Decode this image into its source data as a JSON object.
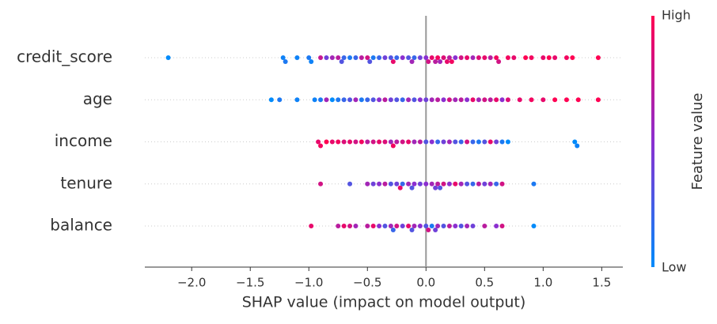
{
  "chart_data": {
    "type": "beeswarm",
    "xlabel": "SHAP value (impact on model output)",
    "categories": [
      "credit_score",
      "age",
      "income",
      "tenure",
      "balance"
    ],
    "values": [
      [
        -2.2,
        -1.22,
        -1.2,
        -1.1,
        -1.0,
        -0.98,
        -0.9,
        -0.85,
        -0.8,
        -0.75,
        -0.72,
        -0.7,
        -0.65,
        -0.6,
        -0.55,
        -0.5,
        -0.48,
        -0.45,
        -0.4,
        -0.35,
        -0.3,
        -0.28,
        -0.25,
        -0.2,
        -0.15,
        -0.12,
        -0.1,
        -0.05,
        0.0,
        0.02,
        0.05,
        0.08,
        0.1,
        0.12,
        0.15,
        0.18,
        0.2,
        0.22,
        0.25,
        0.3,
        0.35,
        0.4,
        0.45,
        0.5,
        0.55,
        0.6,
        0.62,
        0.7,
        0.75,
        0.85,
        0.9,
        1.0,
        1.05,
        1.1,
        1.2,
        1.25,
        1.47
      ],
      [
        -1.32,
        -1.25,
        -1.1,
        -0.95,
        -0.9,
        -0.85,
        -0.8,
        -0.75,
        -0.7,
        -0.65,
        -0.6,
        -0.55,
        -0.5,
        -0.45,
        -0.4,
        -0.35,
        -0.3,
        -0.25,
        -0.2,
        -0.15,
        -0.1,
        -0.05,
        0.0,
        0.05,
        0.1,
        0.15,
        0.2,
        0.25,
        0.3,
        0.35,
        0.4,
        0.45,
        0.5,
        0.55,
        0.6,
        0.65,
        0.7,
        0.8,
        0.9,
        1.0,
        1.1,
        1.2,
        1.3,
        1.47
      ],
      [
        -0.92,
        -0.9,
        -0.85,
        -0.8,
        -0.75,
        -0.7,
        -0.65,
        -0.6,
        -0.55,
        -0.5,
        -0.45,
        -0.4,
        -0.35,
        -0.3,
        -0.28,
        -0.25,
        -0.2,
        -0.15,
        -0.1,
        -0.05,
        0.0,
        0.05,
        0.1,
        0.15,
        0.2,
        0.25,
        0.3,
        0.35,
        0.4,
        0.45,
        0.5,
        0.55,
        0.6,
        0.65,
        0.7,
        1.27,
        1.29
      ],
      [
        -0.9,
        -0.65,
        -0.5,
        -0.45,
        -0.4,
        -0.35,
        -0.3,
        -0.25,
        -0.22,
        -0.2,
        -0.15,
        -0.12,
        -0.1,
        -0.05,
        0.0,
        0.05,
        0.08,
        0.1,
        0.12,
        0.15,
        0.2,
        0.25,
        0.3,
        0.35,
        0.4,
        0.45,
        0.5,
        0.55,
        0.6,
        0.65,
        0.92
      ],
      [
        -0.98,
        -0.75,
        -0.7,
        -0.65,
        -0.6,
        -0.5,
        -0.45,
        -0.4,
        -0.35,
        -0.3,
        -0.28,
        -0.25,
        -0.2,
        -0.15,
        -0.12,
        -0.1,
        -0.05,
        0.0,
        0.02,
        0.05,
        0.08,
        0.1,
        0.15,
        0.2,
        0.25,
        0.3,
        0.35,
        0.4,
        0.5,
        0.6,
        0.65,
        0.92
      ]
    ],
    "feature_values": [
      [
        0.0,
        0.05,
        0.1,
        0.05,
        0.1,
        0.05,
        0.75,
        0.4,
        0.6,
        0.7,
        0.3,
        0.2,
        0.1,
        0.2,
        0.7,
        0.8,
        0.3,
        0.1,
        0.2,
        0.4,
        0.3,
        0.9,
        0.2,
        0.5,
        0.3,
        0.6,
        0.2,
        0.4,
        0.5,
        0.8,
        0.9,
        0.7,
        0.95,
        0.6,
        0.85,
        0.9,
        0.7,
        0.95,
        0.5,
        0.8,
        0.9,
        0.6,
        0.85,
        0.9,
        0.7,
        0.95,
        0.8,
        0.95,
        0.9,
        1.0,
        0.95,
        0.9,
        1.0,
        0.9,
        0.95,
        1.0,
        1.0
      ],
      [
        0.0,
        0.1,
        0.05,
        0.05,
        0.1,
        0.6,
        0.0,
        0.1,
        0.2,
        0.3,
        0.6,
        0.1,
        0.2,
        0.3,
        0.5,
        0.7,
        0.4,
        0.3,
        0.2,
        0.6,
        0.3,
        0.5,
        0.4,
        0.6,
        0.7,
        0.5,
        0.8,
        0.6,
        0.7,
        0.5,
        0.9,
        0.6,
        0.8,
        0.7,
        0.9,
        0.5,
        0.85,
        0.9,
        0.95,
        0.9,
        1.0,
        1.0,
        1.0,
        1.0
      ],
      [
        0.9,
        0.95,
        1.0,
        0.9,
        0.95,
        0.85,
        0.9,
        0.8,
        0.95,
        0.7,
        0.8,
        0.9,
        0.85,
        0.6,
        0.95,
        0.7,
        0.8,
        0.9,
        0.6,
        0.7,
        0.3,
        0.5,
        0.2,
        0.4,
        0.6,
        0.3,
        0.2,
        0.8,
        0.2,
        0.1,
        0.3,
        0.9,
        0.4,
        0.1,
        0.0,
        0.0,
        0.05
      ],
      [
        0.8,
        0.3,
        0.6,
        0.4,
        0.5,
        0.7,
        0.3,
        0.4,
        0.9,
        0.2,
        0.6,
        0.3,
        0.5,
        0.4,
        0.5,
        0.6,
        0.4,
        0.7,
        0.3,
        0.8,
        0.5,
        0.9,
        0.6,
        0.3,
        0.2,
        0.7,
        0.4,
        0.6,
        0.2,
        0.8,
        0.1
      ],
      [
        0.9,
        0.7,
        0.9,
        0.8,
        0.6,
        0.7,
        0.9,
        0.5,
        0.3,
        0.6,
        0.2,
        0.8,
        0.4,
        0.9,
        0.3,
        0.6,
        0.5,
        0.3,
        0.8,
        0.1,
        0.4,
        0.6,
        0.3,
        0.7,
        0.5,
        0.3,
        0.6,
        0.4,
        0.7,
        0.5,
        0.8,
        0.0
      ]
    ],
    "xlim": [
      -2.4,
      1.68
    ],
    "xticks": [
      {
        "value": -2.0,
        "label": "−2.0"
      },
      {
        "value": -1.5,
        "label": "−1.5"
      },
      {
        "value": -1.0,
        "label": "−1.0"
      },
      {
        "value": -0.5,
        "label": "−0.5"
      },
      {
        "value": 0.0,
        "label": "0.0"
      },
      0.5,
      {
        "value": 1.0,
        "label": "1.0"
      },
      1.5
    ],
    "colorbar": {
      "label": "Feature value",
      "high": "High",
      "low": "Low",
      "colors": [
        "#008bfb",
        "#8b2fd0",
        "#ff0052"
      ]
    }
  }
}
